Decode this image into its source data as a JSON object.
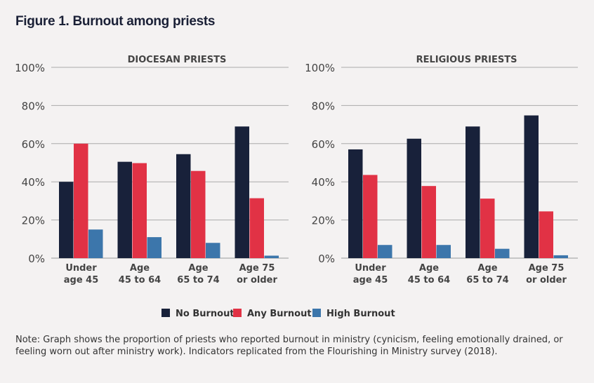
{
  "title": "Figure 1. Burnout among priests",
  "note": "Note: Graph shows the proportion of priests who reported burnout in ministry (cynicism, feeling emotionally drained, or feeling worn out after ministry work). Indicators replicated from the Flourishing in Ministry survey (2018).",
  "chart_data": [
    {
      "type": "bar",
      "title": "DIOCESAN PRIESTS",
      "categories": [
        [
          "Under",
          "age 45"
        ],
        [
          "Age",
          "45 to 64"
        ],
        [
          "Age",
          "65 to 74"
        ],
        [
          "Age 75",
          "or older"
        ]
      ],
      "yticks": [
        "0%",
        "20%",
        "40%",
        "60%",
        "80%",
        "100%"
      ],
      "ylim": [
        0,
        100
      ],
      "grid": true,
      "series": [
        {
          "name": "No Burnout",
          "color": "#18213a",
          "values": [
            40,
            50.5,
            54.5,
            69
          ]
        },
        {
          "name": "Any Burnout",
          "color": "#e13245",
          "values": [
            60,
            49.8,
            45.7,
            31.4
          ]
        },
        {
          "name": "High Burnout",
          "color": "#3c76ab",
          "values": [
            15,
            11,
            8,
            1.3
          ]
        }
      ]
    },
    {
      "type": "bar",
      "title": "RELIGIOUS PRIESTS",
      "categories": [
        [
          "Under",
          "age 45"
        ],
        [
          "Age",
          "45 to 64"
        ],
        [
          "Age",
          "65 to 74"
        ],
        [
          "Age 75",
          "or older"
        ]
      ],
      "yticks": [
        "0%",
        "20%",
        "40%",
        "60%",
        "80%",
        "100%"
      ],
      "ylim": [
        0,
        100
      ],
      "grid": true,
      "series": [
        {
          "name": "No Burnout",
          "color": "#18213a",
          "values": [
            57,
            62.6,
            69,
            74.8
          ]
        },
        {
          "name": "Any Burnout",
          "color": "#e13245",
          "values": [
            43.6,
            37.8,
            31.2,
            24.5
          ]
        },
        {
          "name": "High Burnout",
          "color": "#3c76ab",
          "values": [
            6.9,
            6.9,
            4.9,
            1.5
          ]
        }
      ]
    }
  ],
  "legend": {
    "placement": "bottom",
    "items": [
      "No Burnout",
      "Any Burnout",
      "High Burnout"
    ]
  }
}
